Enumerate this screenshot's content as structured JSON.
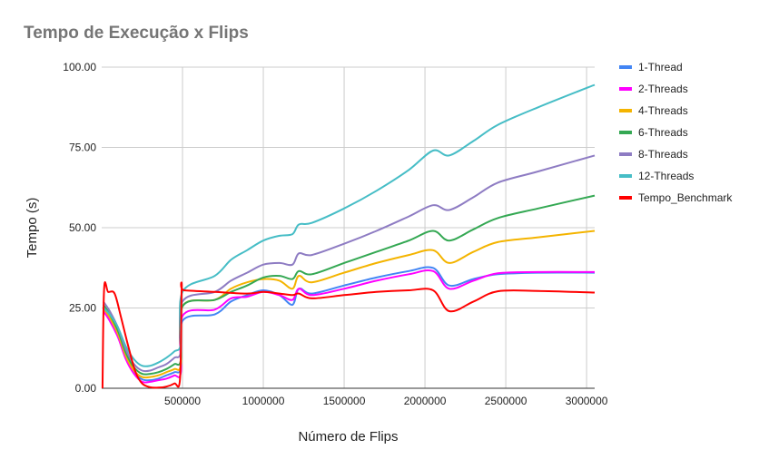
{
  "chart_data": {
    "type": "line",
    "title": "Tempo de Execução x Flips",
    "xlabel": "Número de Flips",
    "ylabel": "Tempo (s)",
    "xlim": [
      0,
      3050000
    ],
    "ylim": [
      0,
      100
    ],
    "x_ticks": [
      500000,
      1000000,
      1500000,
      2000000,
      2500000,
      3000000
    ],
    "x_tick_labels": [
      "500000",
      "1000000",
      "1500000",
      "2000000",
      "2500000",
      "3000000"
    ],
    "y_ticks": [
      0,
      25,
      50,
      75,
      100
    ],
    "y_tick_labels": [
      "0.00",
      "25.00",
      "50.00",
      "75.00",
      "100.00"
    ],
    "grid": "vertical-and-horizontal",
    "legend_position": "right",
    "series": [
      {
        "name": "1-Thread",
        "color": "#4285f4",
        "points": [
          [
            10000,
            25
          ],
          [
            50000,
            22
          ],
          [
            100000,
            17
          ],
          [
            150000,
            10
          ],
          [
            200000,
            5
          ],
          [
            250000,
            2.8
          ],
          [
            300000,
            2.5
          ],
          [
            350000,
            3
          ],
          [
            400000,
            4
          ],
          [
            450000,
            5
          ],
          [
            490000,
            6.5
          ],
          [
            500000,
            21
          ],
          [
            700000,
            23
          ],
          [
            800000,
            27
          ],
          [
            900000,
            29
          ],
          [
            1000000,
            30.5
          ],
          [
            1100000,
            29
          ],
          [
            1180000,
            26
          ],
          [
            1220000,
            31
          ],
          [
            1300000,
            29.5
          ],
          [
            1500000,
            32
          ],
          [
            1700000,
            34.5
          ],
          [
            1900000,
            36.5
          ],
          [
            2050000,
            37.5
          ],
          [
            2150000,
            32
          ],
          [
            2300000,
            34
          ],
          [
            2450000,
            35.5
          ],
          [
            2700000,
            36
          ],
          [
            3050000,
            36
          ]
        ]
      },
      {
        "name": "2-Threads",
        "color": "#ff00ff",
        "points": [
          [
            10000,
            24
          ],
          [
            50000,
            21
          ],
          [
            100000,
            16
          ],
          [
            150000,
            9
          ],
          [
            200000,
            4.5
          ],
          [
            250000,
            2
          ],
          [
            300000,
            2
          ],
          [
            350000,
            2.5
          ],
          [
            400000,
            3
          ],
          [
            450000,
            4
          ],
          [
            490000,
            5
          ],
          [
            500000,
            22.5
          ],
          [
            700000,
            24.5
          ],
          [
            800000,
            28
          ],
          [
            900000,
            28.5
          ],
          [
            1000000,
            30
          ],
          [
            1100000,
            29
          ],
          [
            1180000,
            27.5
          ],
          [
            1220000,
            31
          ],
          [
            1300000,
            29
          ],
          [
            1500000,
            31
          ],
          [
            1700000,
            33.5
          ],
          [
            1900000,
            35.5
          ],
          [
            2050000,
            36.5
          ],
          [
            2150000,
            31
          ],
          [
            2300000,
            33.5
          ],
          [
            2450000,
            35.8
          ],
          [
            2700000,
            36.2
          ],
          [
            3050000,
            36.2
          ]
        ]
      },
      {
        "name": "4-Threads",
        "color": "#f4b400",
        "points": [
          [
            10000,
            25
          ],
          [
            50000,
            22
          ],
          [
            100000,
            17
          ],
          [
            150000,
            10
          ],
          [
            200000,
            5.5
          ],
          [
            250000,
            3.5
          ],
          [
            300000,
            3.5
          ],
          [
            350000,
            4
          ],
          [
            400000,
            5
          ],
          [
            450000,
            6
          ],
          [
            490000,
            7.5
          ],
          [
            500000,
            25.5
          ],
          [
            700000,
            27.5
          ],
          [
            800000,
            31
          ],
          [
            900000,
            33
          ],
          [
            1000000,
            34
          ],
          [
            1100000,
            33.5
          ],
          [
            1180000,
            31
          ],
          [
            1220000,
            35
          ],
          [
            1300000,
            33
          ],
          [
            1500000,
            36
          ],
          [
            1700000,
            39
          ],
          [
            1900000,
            41.5
          ],
          [
            2050000,
            43
          ],
          [
            2150000,
            39
          ],
          [
            2300000,
            42.5
          ],
          [
            2450000,
            45.5
          ],
          [
            2700000,
            47
          ],
          [
            3050000,
            49
          ]
        ]
      },
      {
        "name": "6-Threads",
        "color": "#34a853",
        "points": [
          [
            10000,
            26
          ],
          [
            50000,
            23
          ],
          [
            100000,
            18
          ],
          [
            150000,
            11
          ],
          [
            200000,
            6.5
          ],
          [
            250000,
            4.5
          ],
          [
            300000,
            4.5
          ],
          [
            350000,
            5
          ],
          [
            400000,
            6
          ],
          [
            450000,
            7.5
          ],
          [
            490000,
            9
          ],
          [
            500000,
            25.5
          ],
          [
            700000,
            27.5
          ],
          [
            800000,
            30
          ],
          [
            900000,
            32
          ],
          [
            1000000,
            34.5
          ],
          [
            1100000,
            35
          ],
          [
            1180000,
            34
          ],
          [
            1220000,
            36.5
          ],
          [
            1300000,
            35.5
          ],
          [
            1500000,
            39
          ],
          [
            1700000,
            42.5
          ],
          [
            1900000,
            46
          ],
          [
            2050000,
            49
          ],
          [
            2150000,
            46
          ],
          [
            2300000,
            49.5
          ],
          [
            2450000,
            53
          ],
          [
            2700000,
            56
          ],
          [
            3050000,
            60
          ]
        ]
      },
      {
        "name": "8-Threads",
        "color": "#8e7cc3",
        "points": [
          [
            10000,
            27
          ],
          [
            50000,
            24
          ],
          [
            100000,
            19
          ],
          [
            150000,
            12
          ],
          [
            200000,
            7.5
          ],
          [
            250000,
            5.5
          ],
          [
            300000,
            5.5
          ],
          [
            350000,
            6.5
          ],
          [
            400000,
            7.5
          ],
          [
            450000,
            9.5
          ],
          [
            490000,
            11.5
          ],
          [
            500000,
            27
          ],
          [
            700000,
            30
          ],
          [
            800000,
            33.5
          ],
          [
            900000,
            36
          ],
          [
            1000000,
            38.5
          ],
          [
            1100000,
            39
          ],
          [
            1180000,
            38.5
          ],
          [
            1220000,
            42
          ],
          [
            1300000,
            41.5
          ],
          [
            1500000,
            45
          ],
          [
            1700000,
            49
          ],
          [
            1900000,
            53.5
          ],
          [
            2050000,
            57
          ],
          [
            2150000,
            55.5
          ],
          [
            2300000,
            59.5
          ],
          [
            2450000,
            64
          ],
          [
            2700000,
            67.5
          ],
          [
            3050000,
            72.5
          ]
        ]
      },
      {
        "name": "12-Threads",
        "color": "#46bdc6",
        "points": [
          [
            10000,
            25
          ],
          [
            50000,
            23
          ],
          [
            100000,
            19
          ],
          [
            150000,
            13
          ],
          [
            200000,
            9
          ],
          [
            250000,
            7
          ],
          [
            300000,
            7
          ],
          [
            350000,
            8
          ],
          [
            400000,
            9.5
          ],
          [
            450000,
            11.5
          ],
          [
            490000,
            14
          ],
          [
            500000,
            30
          ],
          [
            700000,
            35
          ],
          [
            800000,
            40
          ],
          [
            900000,
            43
          ],
          [
            1000000,
            46
          ],
          [
            1100000,
            47.5
          ],
          [
            1180000,
            48
          ],
          [
            1220000,
            51
          ],
          [
            1300000,
            51.5
          ],
          [
            1500000,
            56
          ],
          [
            1700000,
            61.5
          ],
          [
            1900000,
            68
          ],
          [
            2050000,
            74
          ],
          [
            2150000,
            72.5
          ],
          [
            2300000,
            77
          ],
          [
            2450000,
            82
          ],
          [
            2700000,
            87.5
          ],
          [
            3050000,
            94.5
          ]
        ]
      },
      {
        "name": "Tempo_Benchmark",
        "color": "#ff0000",
        "points": [
          [
            5000,
            0
          ],
          [
            15000,
            31
          ],
          [
            40000,
            30
          ],
          [
            80000,
            29.5
          ],
          [
            120000,
            22
          ],
          [
            170000,
            12
          ],
          [
            210000,
            5
          ],
          [
            250000,
            1.5
          ],
          [
            300000,
            0.3
          ],
          [
            350000,
            0.2
          ],
          [
            400000,
            0.5
          ],
          [
            450000,
            1.5
          ],
          [
            485000,
            3
          ],
          [
            495000,
            31
          ],
          [
            510000,
            30.5
          ],
          [
            700000,
            30
          ],
          [
            900000,
            29.5
          ],
          [
            1000000,
            30
          ],
          [
            1100000,
            29.5
          ],
          [
            1180000,
            29
          ],
          [
            1220000,
            29.5
          ],
          [
            1300000,
            28
          ],
          [
            1500000,
            29
          ],
          [
            1700000,
            30
          ],
          [
            1900000,
            30.5
          ],
          [
            2050000,
            30.5
          ],
          [
            2150000,
            24
          ],
          [
            2300000,
            27
          ],
          [
            2450000,
            30.2
          ],
          [
            2700000,
            30.3
          ],
          [
            3050000,
            29.8
          ]
        ]
      }
    ]
  }
}
